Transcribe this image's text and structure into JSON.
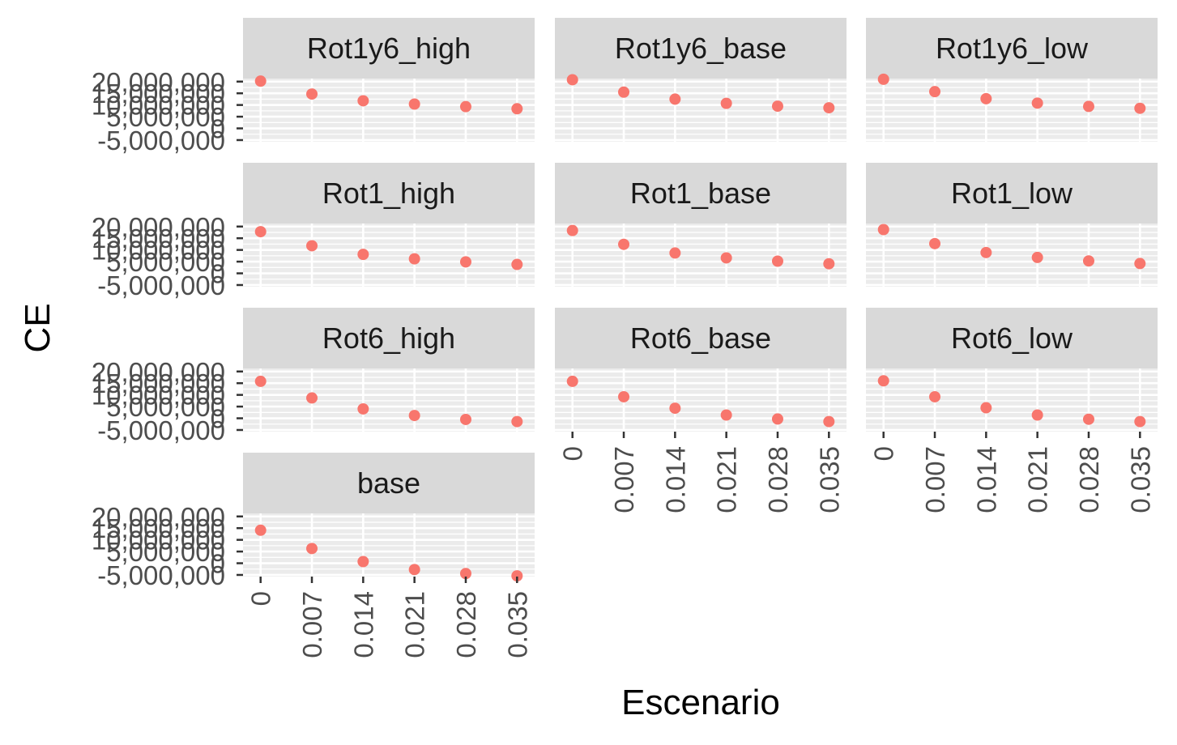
{
  "chart_data": {
    "type": "scatter",
    "xlabel": "Escenario",
    "ylabel": "CE",
    "x_ticks": [
      "0",
      "0.007",
      "0.014",
      "0.021",
      "0.028",
      "0.035"
    ],
    "y_ticks": [
      {
        "value": 20000000,
        "label": "20,000,000"
      },
      {
        "value": 15000000,
        "label": "15,000,000"
      },
      {
        "value": 10000000,
        "label": "10,000,000"
      },
      {
        "value": 5000000,
        "label": "5,000,000"
      },
      {
        "value": 0,
        "label": "0"
      },
      {
        "value": -5000000,
        "label": "-5,000,000"
      }
    ],
    "ylim": [
      -5700000,
      21300000
    ],
    "point_color": "#F8766D",
    "strip_color": "#D9D9D9",
    "panel_color": "#EBEBEB",
    "panels": [
      {
        "title": "Rot1y6_high",
        "x": [
          0,
          0.007,
          0.014,
          0.021,
          0.028,
          0.035
        ],
        "y": [
          20200000,
          14700000,
          11800000,
          10400000,
          9300000,
          8400000
        ]
      },
      {
        "title": "Rot1y6_base",
        "x": [
          0,
          0.007,
          0.014,
          0.021,
          0.028,
          0.035
        ],
        "y": [
          20800000,
          15500000,
          12500000,
          10700000,
          9500000,
          8800000
        ]
      },
      {
        "title": "Rot1y6_low",
        "x": [
          0,
          0.007,
          0.014,
          0.021,
          0.028,
          0.035
        ],
        "y": [
          21000000,
          15700000,
          12700000,
          10800000,
          9400000,
          8600000
        ]
      },
      {
        "title": "Rot1_high",
        "x": [
          0,
          0.007,
          0.014,
          0.021,
          0.028,
          0.035
        ],
        "y": [
          17800000,
          11800000,
          8100000,
          6200000,
          4900000,
          3800000
        ]
      },
      {
        "title": "Rot1_base",
        "x": [
          0,
          0.007,
          0.014,
          0.021,
          0.028,
          0.035
        ],
        "y": [
          18300000,
          12400000,
          8700000,
          6600000,
          5200000,
          4100000
        ]
      },
      {
        "title": "Rot1_low",
        "x": [
          0,
          0.007,
          0.014,
          0.021,
          0.028,
          0.035
        ],
        "y": [
          18700000,
          12700000,
          8900000,
          6800000,
          5300000,
          4200000
        ]
      },
      {
        "title": "Rot6_high",
        "x": [
          0,
          0.007,
          0.014,
          0.021,
          0.028,
          0.035
        ],
        "y": [
          15800000,
          8700000,
          4000000,
          1200000,
          -500000,
          -1400000
        ]
      },
      {
        "title": "Rot6_base",
        "x": [
          0,
          0.007,
          0.014,
          0.021,
          0.028,
          0.035
        ],
        "y": [
          15800000,
          9200000,
          4300000,
          1400000,
          -300000,
          -1400000
        ]
      },
      {
        "title": "Rot6_low",
        "x": [
          0,
          0.007,
          0.014,
          0.021,
          0.028,
          0.035
        ],
        "y": [
          16000000,
          9200000,
          4500000,
          1400000,
          -400000,
          -1400000
        ]
      },
      {
        "title": "base",
        "x": [
          0,
          0.007,
          0.014,
          0.021,
          0.028,
          0.035
        ],
        "y": [
          14100000,
          6300000,
          700000,
          -2700000,
          -4400000,
          -5400000
        ]
      }
    ]
  }
}
